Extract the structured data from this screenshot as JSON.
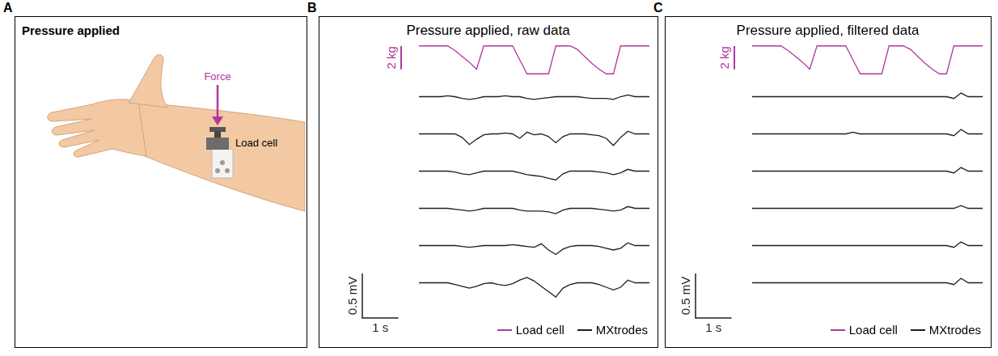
{
  "figure": {
    "panels": [
      {
        "panel": "A",
        "title": "Pressure applied",
        "force_label": "Force",
        "sensor_label": "Load cell",
        "color": "#b4359e"
      }
    ]
  },
  "chart_data": [
    {
      "panel": "B",
      "type": "line",
      "title": "Pressure applied, raw data",
      "x": [
        0,
        0.2,
        0.4,
        0.6,
        0.8,
        1,
        1.2,
        1.4,
        1.6,
        1.8,
        2,
        2.2,
        2.4,
        2.6,
        2.8,
        3,
        3.2,
        3.4,
        3.6,
        3.8,
        4,
        4.2,
        4.4,
        4.6,
        4.8,
        5,
        5.2,
        5.4,
        5.6,
        5.8,
        6,
        6.2,
        6.4
      ],
      "xlim": [
        0,
        6.4
      ],
      "ylim": [
        -0.25,
        0.15
      ],
      "y2lim": [
        -2.8,
        0.4
      ],
      "tick_labels": false,
      "grid": false,
      "legend": "bottom right",
      "series": [
        {
          "name": "Load cell",
          "color": "#b4359e",
          "axis": "y2",
          "values": [
            0,
            0,
            0,
            0,
            0,
            -0.4,
            -0.9,
            -1.4,
            -2,
            0,
            0,
            0,
            0,
            0,
            -1.2,
            -2.4,
            -2.4,
            -2.4,
            -2.4,
            0,
            0,
            0,
            -0.3,
            -0.9,
            -1.5,
            -2,
            -2.4,
            -2.4,
            0,
            0,
            0,
            0,
            0
          ]
        },
        {
          "name": "MXtrodes",
          "color": "#1f1f1f",
          "values": [
            0,
            0,
            0,
            0,
            0.01,
            0,
            -0.02,
            -0.03,
            -0.02,
            0,
            0,
            0,
            0.01,
            0,
            0,
            -0.02,
            -0.03,
            -0.02,
            -0.01,
            0,
            0,
            0,
            0,
            -0.01,
            -0.02,
            -0.02,
            -0.02,
            -0.03,
            0,
            0.02,
            0,
            0,
            0
          ]
        },
        {
          "name": "MXtrodes",
          "color": "#1f1f1f",
          "values": [
            0,
            0,
            0,
            0,
            0,
            0,
            -0.04,
            -0.12,
            -0.06,
            -0.01,
            0,
            0,
            0.01,
            0,
            -0.05,
            0.02,
            -0.01,
            0,
            -0.03,
            -0.1,
            -0.03,
            0,
            0,
            0,
            -0.01,
            -0.02,
            -0.05,
            -0.13,
            -0.04,
            0.03,
            0,
            0,
            0
          ]
        },
        {
          "name": "MXtrodes",
          "color": "#1f1f1f",
          "values": [
            0,
            0,
            0,
            0,
            0,
            -0.01,
            -0.03,
            -0.04,
            -0.02,
            0,
            0,
            0,
            0,
            0,
            -0.02,
            -0.04,
            -0.05,
            -0.06,
            -0.08,
            -0.1,
            -0.03,
            0,
            0,
            0,
            0,
            -0.01,
            -0.02,
            -0.04,
            -0.02,
            0.02,
            0,
            0,
            0
          ]
        },
        {
          "name": "MXtrodes",
          "color": "#1f1f1f",
          "values": [
            0,
            0,
            0,
            0,
            0,
            -0.01,
            -0.02,
            -0.03,
            -0.02,
            0,
            0,
            0,
            0,
            0,
            -0.02,
            -0.03,
            -0.03,
            -0.03,
            -0.04,
            -0.06,
            -0.02,
            0,
            0,
            0,
            0,
            -0.01,
            -0.02,
            -0.03,
            -0.02,
            0.02,
            0,
            0,
            0
          ]
        },
        {
          "name": "MXtrodes",
          "color": "#1f1f1f",
          "values": [
            0,
            0,
            0,
            0,
            0,
            0,
            -0.01,
            -0.02,
            -0.01,
            0,
            0,
            0,
            0,
            0.01,
            0,
            -0.01,
            -0.02,
            0.02,
            -0.05,
            -0.1,
            -0.04,
            -0.01,
            0,
            0,
            0,
            -0.01,
            -0.03,
            -0.05,
            -0.03,
            0.03,
            0,
            0,
            0
          ]
        },
        {
          "name": "MXtrodes",
          "color": "#1f1f1f",
          "values": [
            0,
            0,
            0,
            0,
            0,
            -0.02,
            -0.04,
            -0.06,
            -0.04,
            -0.01,
            0,
            -0.02,
            -0.03,
            -0.01,
            0.03,
            0.06,
            0.02,
            -0.04,
            -0.1,
            -0.16,
            -0.06,
            -0.02,
            0,
            0,
            0,
            -0.02,
            -0.05,
            -0.08,
            -0.05,
            0.03,
            0,
            0,
            0
          ]
        }
      ],
      "scale_bars": [
        {
          "value": 2,
          "label": "2 kg",
          "axis": "y2"
        },
        {
          "value": 0.5,
          "label": "0.5 mV",
          "axis": "y"
        },
        {
          "value": 1,
          "label": "1 s",
          "axis": "x"
        }
      ]
    },
    {
      "panel": "C",
      "type": "line",
      "title": "Pressure applied, filtered data",
      "x": [
        0,
        0.2,
        0.4,
        0.6,
        0.8,
        1,
        1.2,
        1.4,
        1.6,
        1.8,
        2,
        2.2,
        2.4,
        2.6,
        2.8,
        3,
        3.2,
        3.4,
        3.6,
        3.8,
        4,
        4.2,
        4.4,
        4.6,
        4.8,
        5,
        5.2,
        5.4,
        5.6,
        5.8,
        6,
        6.2,
        6.4
      ],
      "xlim": [
        0,
        6.4
      ],
      "ylim": [
        -0.25,
        0.15
      ],
      "y2lim": [
        -2.8,
        0.4
      ],
      "tick_labels": false,
      "grid": false,
      "legend": "bottom right",
      "series": [
        {
          "name": "Load cell",
          "color": "#b4359e",
          "axis": "y2",
          "values": [
            0,
            0,
            0,
            0,
            0,
            -0.4,
            -0.9,
            -1.4,
            -2,
            0,
            0,
            0,
            0,
            0,
            -1.2,
            -2.4,
            -2.4,
            -2.4,
            -2.4,
            0,
            0,
            0,
            -0.3,
            -0.9,
            -1.5,
            -2,
            -2.4,
            -2.4,
            0,
            0,
            0,
            0,
            0
          ]
        },
        {
          "name": "MXtrodes",
          "color": "#1f1f1f",
          "values": [
            0,
            0,
            0,
            0,
            0,
            0,
            0,
            0,
            0,
            0,
            0,
            0,
            0,
            0,
            0,
            0,
            0,
            0,
            0,
            0,
            0,
            0,
            0,
            0,
            0,
            0,
            0,
            0,
            -0.02,
            0.04,
            0,
            0,
            0
          ]
        },
        {
          "name": "MXtrodes",
          "color": "#1f1f1f",
          "values": [
            0,
            0,
            0,
            0,
            0,
            0,
            0,
            0,
            0,
            0,
            0,
            0,
            0,
            0,
            0.02,
            0,
            0,
            0,
            0,
            0,
            0,
            0,
            0,
            0,
            0,
            0,
            0,
            0,
            -0.02,
            0.05,
            0,
            0,
            0
          ]
        },
        {
          "name": "MXtrodes",
          "color": "#1f1f1f",
          "values": [
            0,
            0,
            0,
            0,
            0,
            0,
            0,
            0,
            0,
            0,
            0,
            0,
            0,
            0,
            0,
            0,
            0,
            0,
            0,
            0,
            0,
            0,
            0,
            0,
            0,
            0,
            0,
            0,
            -0.02,
            0.04,
            0,
            0,
            0
          ]
        },
        {
          "name": "MXtrodes",
          "color": "#1f1f1f",
          "values": [
            0,
            0,
            0,
            0,
            0,
            0,
            0,
            0,
            0,
            0,
            0,
            0,
            0,
            0,
            0,
            0,
            0,
            0,
            0,
            0,
            0,
            0,
            0,
            0,
            0,
            0,
            0,
            0,
            0,
            0.03,
            0,
            0,
            0
          ]
        },
        {
          "name": "MXtrodes",
          "color": "#1f1f1f",
          "values": [
            0,
            0,
            0,
            0,
            0,
            0,
            0,
            0,
            0,
            0,
            0,
            0,
            0,
            0,
            0,
            0,
            0,
            0,
            0,
            0,
            0,
            0,
            0,
            0,
            0,
            0,
            0,
            0,
            -0.02,
            0.04,
            0,
            0,
            0
          ]
        },
        {
          "name": "MXtrodes",
          "color": "#1f1f1f",
          "values": [
            0,
            0,
            0,
            0,
            0,
            0,
            0,
            0,
            0,
            0,
            0,
            0,
            0,
            0,
            0,
            0,
            0,
            0,
            0,
            0,
            0,
            0,
            0,
            0,
            0,
            0,
            0,
            0,
            -0.02,
            0.05,
            0,
            0,
            0
          ]
        }
      ],
      "scale_bars": [
        {
          "value": 2,
          "label": "2 kg",
          "axis": "y2"
        },
        {
          "value": 0.5,
          "label": "0.5 mV",
          "axis": "y"
        },
        {
          "value": 1,
          "label": "1 s",
          "axis": "x"
        }
      ]
    }
  ]
}
